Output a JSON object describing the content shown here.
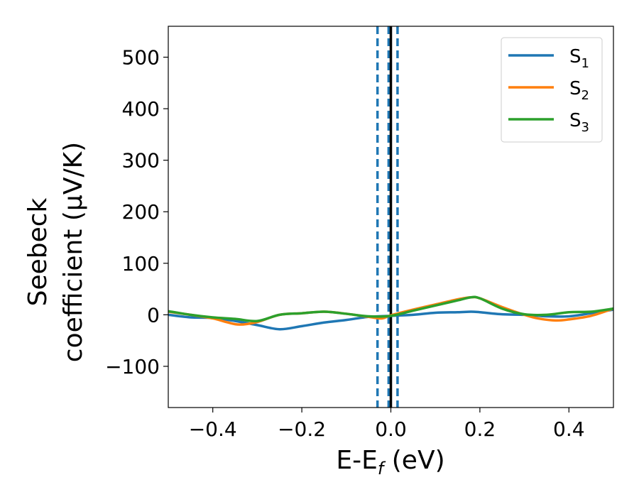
{
  "chart_data": {
    "type": "line",
    "xlabel": {
      "main": "E-E",
      "sub": "f",
      "unit": " (eV)"
    },
    "ylabel": {
      "line1": "Seebeck",
      "line2": "coefficient  (μV/K)"
    },
    "xlim": [
      -0.5,
      0.5
    ],
    "ylim": [
      -180,
      560
    ],
    "xticks": [
      -0.4,
      -0.2,
      0.0,
      0.2,
      0.4
    ],
    "xtick_labels": [
      "−0.4",
      "−0.2",
      "0.0",
      "0.2",
      "0.4"
    ],
    "yticks": [
      -100,
      0,
      100,
      200,
      300,
      400,
      500
    ],
    "ytick_labels": [
      "−100",
      "0",
      "100",
      "200",
      "300",
      "400",
      "500"
    ],
    "grid": false,
    "legend": "top-right",
    "vlines": [
      {
        "x": -0.03,
        "style": "dashed",
        "color": "#1f77b4"
      },
      {
        "x": -0.005,
        "style": "dashed",
        "color": "#1f77b4"
      },
      {
        "x": 0.015,
        "style": "dashed",
        "color": "#1f77b4"
      },
      {
        "x": 0.0,
        "style": "solid",
        "color": "#000000"
      }
    ],
    "series": [
      {
        "name": "S",
        "sub": "1",
        "color": "#1f77b4",
        "x": [
          -0.5,
          -0.45,
          -0.4,
          -0.35,
          -0.3,
          -0.25,
          -0.2,
          -0.15,
          -0.1,
          -0.05,
          0.0,
          0.05,
          0.1,
          0.15,
          0.18,
          0.2,
          0.25,
          0.3,
          0.35,
          0.4,
          0.45,
          0.5
        ],
        "y": [
          0,
          -5,
          -6,
          -12,
          -20,
          -28,
          -22,
          -15,
          -10,
          -4,
          -2,
          0,
          4,
          5,
          6,
          5,
          1,
          0,
          -3,
          -3,
          3,
          10
        ]
      },
      {
        "name": "S",
        "sub": "2",
        "color": "#ff7f0e",
        "x": [
          -0.5,
          -0.45,
          -0.4,
          -0.37,
          -0.34,
          -0.3,
          -0.25,
          -0.2,
          -0.15,
          -0.1,
          -0.05,
          -0.02,
          0.0,
          0.05,
          0.1,
          0.15,
          0.18,
          0.2,
          0.25,
          0.3,
          0.33,
          0.37,
          0.4,
          0.45,
          0.5
        ],
        "y": [
          6,
          0,
          -7,
          -14,
          -19,
          -14,
          0,
          3,
          6,
          2,
          -4,
          -7,
          -1,
          10,
          20,
          30,
          34,
          32,
          15,
          0,
          -7,
          -11,
          -9,
          -2,
          12
        ]
      },
      {
        "name": "S",
        "sub": "3",
        "color": "#2ca02c",
        "x": [
          -0.5,
          -0.45,
          -0.4,
          -0.35,
          -0.3,
          -0.25,
          -0.2,
          -0.15,
          -0.1,
          -0.05,
          0.0,
          0.05,
          0.1,
          0.15,
          0.18,
          0.2,
          0.25,
          0.3,
          0.35,
          0.4,
          0.45,
          0.5
        ],
        "y": [
          7,
          0,
          -5,
          -8,
          -12,
          0,
          3,
          6,
          2,
          -3,
          -2,
          8,
          18,
          28,
          34,
          32,
          12,
          1,
          0,
          5,
          6,
          12
        ]
      }
    ]
  }
}
